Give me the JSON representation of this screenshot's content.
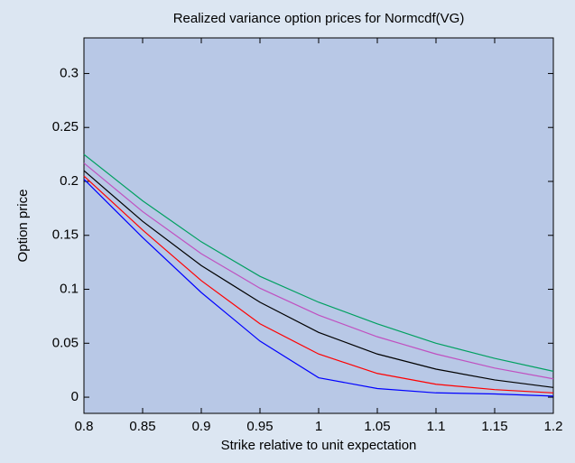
{
  "chart_data": {
    "type": "line",
    "title": "Realized variance option prices for Normcdf(VG)",
    "x_label": "Strike relative to unit expectation",
    "y_label": "Option price",
    "x": [
      0.8,
      0.85,
      0.9,
      0.95,
      1.0,
      1.05,
      1.1,
      1.15,
      1.2
    ],
    "series": [
      {
        "color": "#00a060",
        "values": [
          0.225,
          0.182,
          0.144,
          0.112,
          0.088,
          0.068,
          0.05,
          0.036,
          0.024
        ]
      },
      {
        "color": "#c050c0",
        "values": [
          0.217,
          0.172,
          0.133,
          0.101,
          0.076,
          0.056,
          0.04,
          0.027,
          0.017
        ]
      },
      {
        "color": "#000000",
        "values": [
          0.21,
          0.163,
          0.122,
          0.088,
          0.06,
          0.04,
          0.026,
          0.016,
          0.009
        ]
      },
      {
        "color": "#ff0000",
        "values": [
          0.205,
          0.155,
          0.108,
          0.068,
          0.04,
          0.022,
          0.012,
          0.007,
          0.004
        ]
      },
      {
        "color": "#0000ff",
        "values": [
          0.202,
          0.148,
          0.097,
          0.052,
          0.018,
          0.008,
          0.004,
          0.003,
          0.001
        ]
      }
    ],
    "xlim": [
      0.8,
      1.2
    ],
    "xticks": [
      0.8,
      0.85,
      0.9,
      0.95,
      1,
      1.05,
      1.1,
      1.15,
      1.2
    ],
    "ylim": [
      -0.015,
      0.333
    ],
    "yticks": [
      0,
      0.05,
      0.1,
      0.15,
      0.2,
      0.25,
      0.3
    ]
  }
}
